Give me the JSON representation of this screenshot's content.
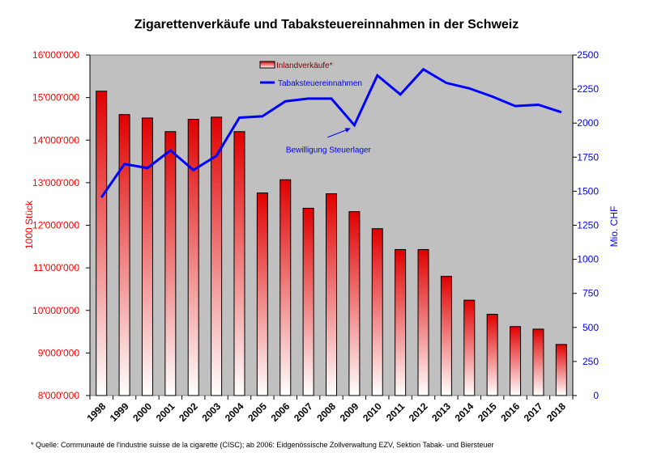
{
  "title": "Zigarettenverkäufe und Tabaksteuereinnahmen in der Schweiz",
  "footnote": "* Quelle: Communauté de l'industrie suisse de la cigarette (CISC); ab 2006: Eidgenössische Zollverwaltung EZV, Sektion Tabak- und Biersteuer",
  "colors": {
    "plot_background": "#c0c0c0",
    "bar_top": "#e00000",
    "bar_bottom": "#ffffff",
    "line": "#0000ff",
    "left_axis": "#ff0000",
    "right_axis": "#0000ff",
    "legend_bar_label": "#800000"
  },
  "chart_data": {
    "type": "bar",
    "categories": [
      "1998",
      "1999",
      "2000",
      "2001",
      "2002",
      "2003",
      "2004",
      "2005",
      "2006",
      "2007",
      "2008",
      "2009",
      "2010",
      "2011",
      "2012",
      "2013",
      "2014",
      "2015",
      "2016",
      "2017",
      "2018"
    ],
    "series": [
      {
        "name": "Inlandverkäufe*",
        "type": "bar",
        "axis": "left",
        "values": [
          15150000,
          14600000,
          14520000,
          14200000,
          14490000,
          14540000,
          14200000,
          12760000,
          13070000,
          12400000,
          12740000,
          12320000,
          11920000,
          11430000,
          11430000,
          10800000,
          10240000,
          9910000,
          9620000,
          9560000,
          9200000
        ]
      },
      {
        "name": "Tabaksteuereinnahmen",
        "type": "line",
        "axis": "right",
        "values": [
          1455,
          1700,
          1670,
          1800,
          1655,
          1760,
          2040,
          2050,
          2160,
          2180,
          2180,
          1985,
          2350,
          2210,
          2395,
          2295,
          2255,
          2195,
          2125,
          2135,
          2080
        ]
      }
    ],
    "ylabel": "1000 Stück",
    "y2label": "Mio. CHF",
    "ylim": [
      8000000,
      16000000
    ],
    "y2lim": [
      0,
      2500
    ],
    "yticks": [
      "8'000'000",
      "9'000'000",
      "10'000'000",
      "11'000'000",
      "12'000'000",
      "13'000'000",
      "14'000'000",
      "15'000'000",
      "16'000'000"
    ],
    "y2ticks": [
      "0",
      "250",
      "500",
      "750",
      "1000",
      "1250",
      "1500",
      "1750",
      "2000",
      "2250",
      "2500"
    ],
    "annotation": {
      "text": "Bewilligung Steuerlager",
      "category": "2009"
    },
    "legend_placement": "top-center",
    "grid": false
  }
}
